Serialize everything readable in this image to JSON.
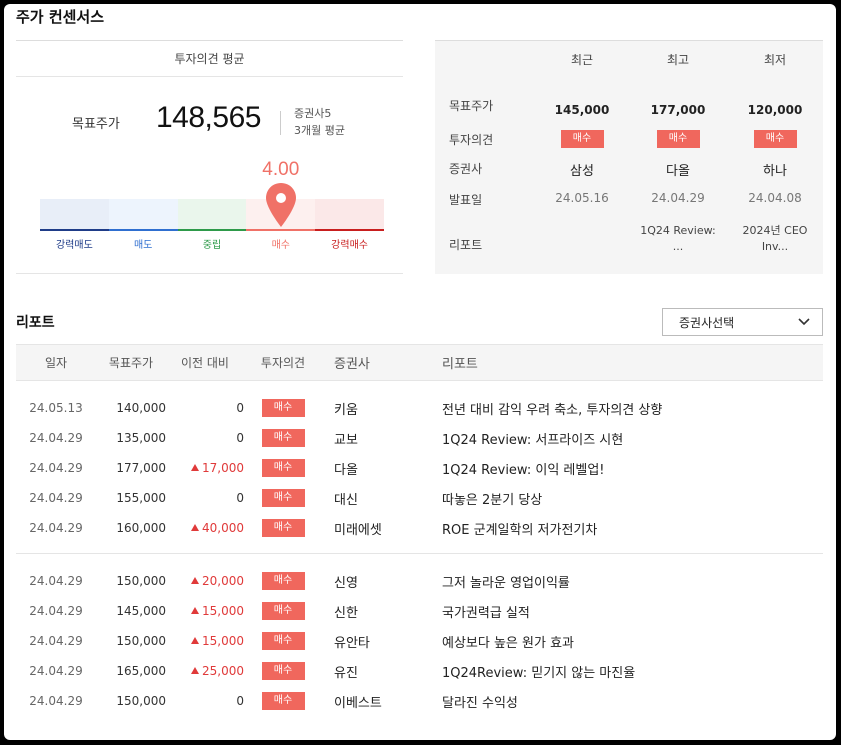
{
  "section_title": "주가 컨센서스",
  "consensus": {
    "panel_title": "투자의견 평균",
    "target_label": "목표주가",
    "target_value": "148,565",
    "broker_count": "증권사5",
    "period": "3개월 평균",
    "score": "4.00",
    "score_value": 4.0,
    "scale_min": 1,
    "scale_max": 5,
    "gauge_labels": [
      "강력매도",
      "매도",
      "중립",
      "매수",
      "강력매수"
    ],
    "gauge_colors": [
      "#1f3c88",
      "#2f6fd0",
      "#2e9a4a",
      "#f07167",
      "#c81e1e"
    ],
    "gauge_fills": [
      "#e8eef8",
      "#edf4fd",
      "#eaf6ec",
      "#fdf0ef",
      "#fbe8e8"
    ]
  },
  "comparison": {
    "headers": [
      "최근",
      "최고",
      "최저"
    ],
    "row_labels": [
      "목표주가",
      "투자의견",
      "증권사",
      "발표일",
      "리포트"
    ],
    "columns": [
      {
        "price": "145,000",
        "opinion": "매수",
        "broker": "삼성",
        "date": "24.05.16",
        "report": ""
      },
      {
        "price": "177,000",
        "opinion": "매수",
        "broker": "다올",
        "date": "24.04.29",
        "report": "1Q24 Review: ..."
      },
      {
        "price": "120,000",
        "opinion": "매수",
        "broker": "하나",
        "date": "24.04.08",
        "report": "2024년 CEO Inv..."
      }
    ]
  },
  "reports": {
    "title": "리포트",
    "select_label": "증권사선택",
    "columns": [
      "일자",
      "목표주가",
      "이전 대비",
      "투자의견",
      "증권사",
      "리포트"
    ],
    "group1": [
      {
        "date": "24.05.13",
        "price": "140,000",
        "change": "0",
        "up": false,
        "opinion": "매수",
        "broker": "키움",
        "title": "전년 대비 감익 우려 축소, 투자의견 상향"
      },
      {
        "date": "24.04.29",
        "price": "135,000",
        "change": "0",
        "up": false,
        "opinion": "매수",
        "broker": "교보",
        "title": "1Q24 Review: 서프라이즈 시현"
      },
      {
        "date": "24.04.29",
        "price": "177,000",
        "change": "17,000",
        "up": true,
        "opinion": "매수",
        "broker": "다올",
        "title": "1Q24 Review: 이익 레벨업!"
      },
      {
        "date": "24.04.29",
        "price": "155,000",
        "change": "0",
        "up": false,
        "opinion": "매수",
        "broker": "대신",
        "title": "따놓은 2분기 당상"
      },
      {
        "date": "24.04.29",
        "price": "160,000",
        "change": "40,000",
        "up": true,
        "opinion": "매수",
        "broker": "미래에셋",
        "title": "ROE 군계일학의 저가전기차"
      }
    ],
    "group2": [
      {
        "date": "24.04.29",
        "price": "150,000",
        "change": "20,000",
        "up": true,
        "opinion": "매수",
        "broker": "신영",
        "title": "그저 놀라운 영업이익률"
      },
      {
        "date": "24.04.29",
        "price": "145,000",
        "change": "15,000",
        "up": true,
        "opinion": "매수",
        "broker": "신한",
        "title": "국가권력급 실적"
      },
      {
        "date": "24.04.29",
        "price": "150,000",
        "change": "15,000",
        "up": true,
        "opinion": "매수",
        "broker": "유안타",
        "title": "예상보다 높은 원가 효과"
      },
      {
        "date": "24.04.29",
        "price": "165,000",
        "change": "25,000",
        "up": true,
        "opinion": "매수",
        "broker": "유진",
        "title": "1Q24Review: 믿기지 않는 마진율"
      },
      {
        "date": "24.04.29",
        "price": "150,000",
        "change": "0",
        "up": false,
        "opinion": "매수",
        "broker": "이베스트",
        "title": "달라진 수익성"
      }
    ]
  }
}
